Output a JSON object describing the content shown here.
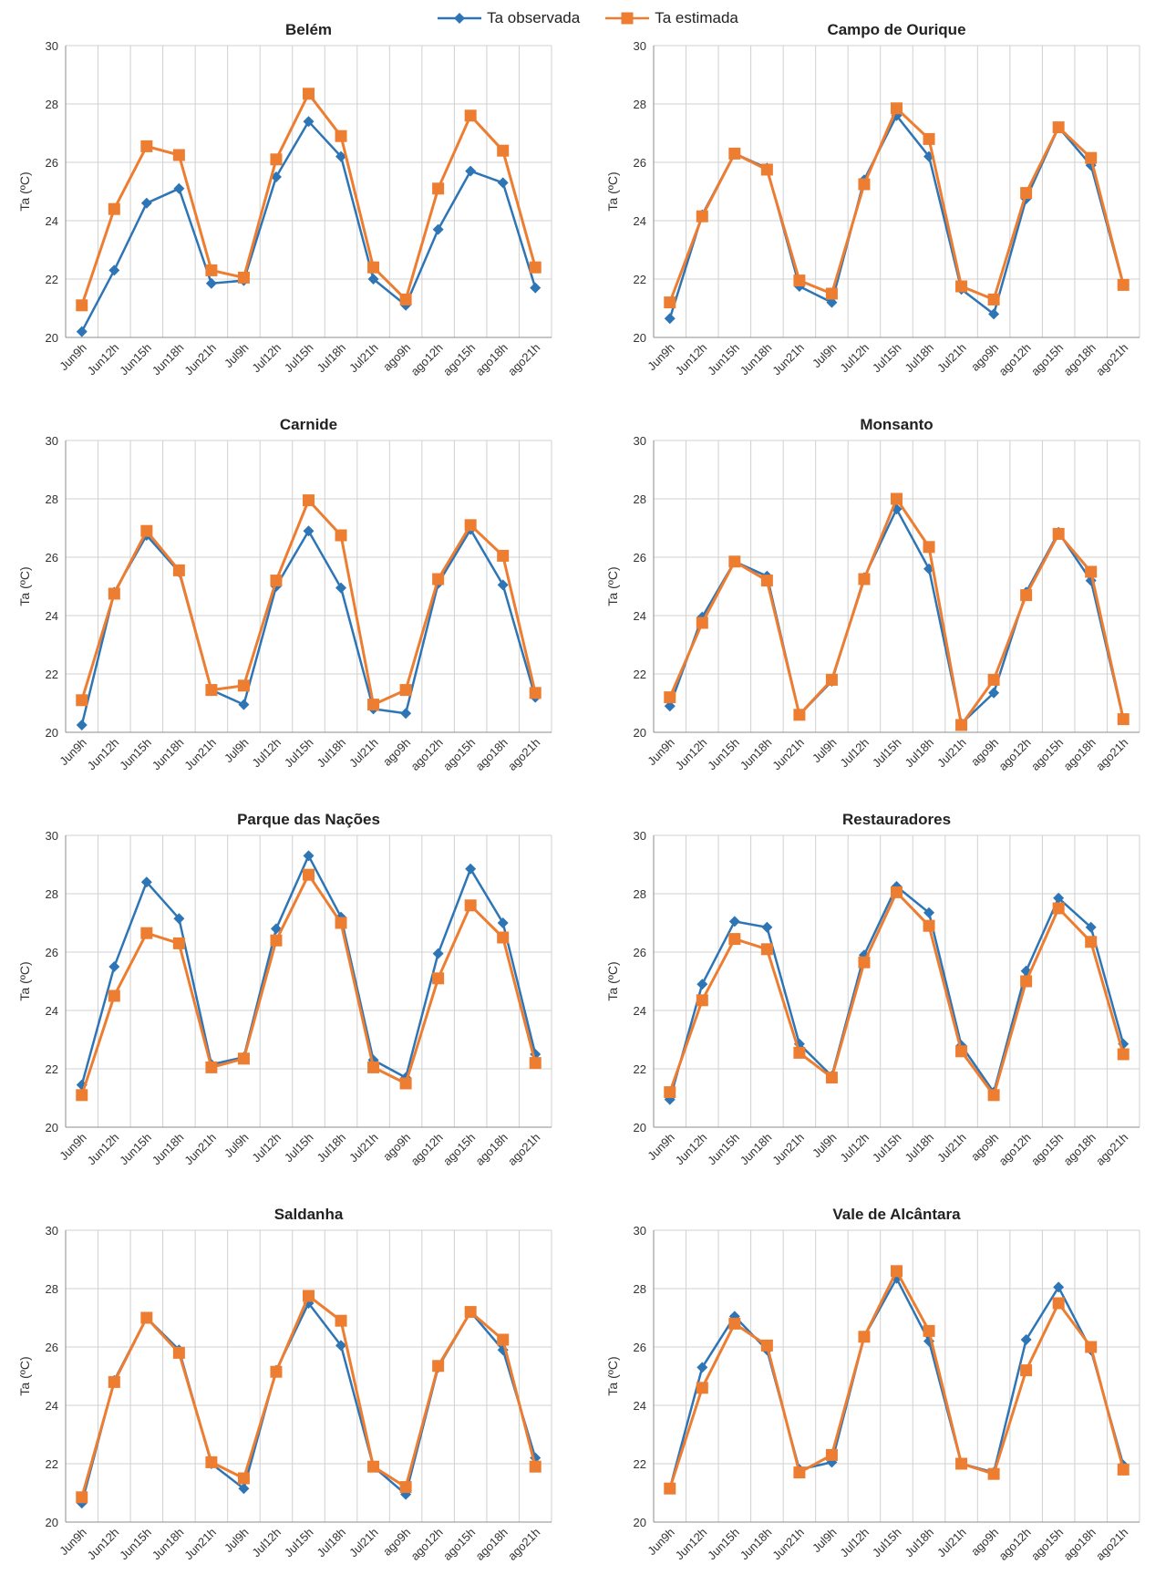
{
  "legend": {
    "position": "top-center",
    "items": [
      {
        "label": "Ta observada",
        "color": "#2E75B6",
        "marker": "diamond"
      },
      {
        "label": "Ta estimada",
        "color": "#ED7D31",
        "marker": "square"
      }
    ]
  },
  "chart_data": [
    {
      "type": "line",
      "title": "Belém",
      "ylabel": "Ta (ºC)",
      "ylim": [
        20,
        30
      ],
      "yticks": [
        20,
        22,
        24,
        26,
        28,
        30
      ],
      "grid": true,
      "categories": [
        "Jun9h",
        "Jun12h",
        "Jun15h",
        "Jun18h",
        "Jun21h",
        "Jul9h",
        "Jul12h",
        "Jul15h",
        "Jul18h",
        "Jul21h",
        "ago9h",
        "ago12h",
        "ago15h",
        "ago18h",
        "ago21h"
      ],
      "series": [
        {
          "name": "Ta observada",
          "values": [
            20.2,
            22.3,
            24.6,
            25.1,
            21.85,
            21.95,
            25.5,
            27.4,
            26.2,
            22.0,
            21.1,
            23.7,
            25.7,
            25.3,
            21.7
          ]
        },
        {
          "name": "Ta estimada",
          "values": [
            21.1,
            24.4,
            26.55,
            26.25,
            22.3,
            22.05,
            26.1,
            28.35,
            26.9,
            22.4,
            21.3,
            25.1,
            27.6,
            26.4,
            22.4
          ]
        }
      ]
    },
    {
      "type": "line",
      "title": "Campo de Ourique",
      "ylabel": "Ta (ºC)",
      "ylim": [
        20,
        30
      ],
      "yticks": [
        20,
        22,
        24,
        26,
        28,
        30
      ],
      "grid": true,
      "categories": [
        "Jun9h",
        "Jun12h",
        "Jun15h",
        "Jun18h",
        "Jun21h",
        "Jul9h",
        "Jul12h",
        "Jul15h",
        "Jul18h",
        "Jul21h",
        "ago9h",
        "ago12h",
        "ago15h",
        "ago18h",
        "ago21h"
      ],
      "series": [
        {
          "name": "Ta observada",
          "values": [
            20.65,
            24.2,
            26.3,
            25.8,
            21.75,
            21.2,
            25.4,
            27.6,
            26.2,
            21.65,
            20.8,
            24.75,
            27.2,
            25.9,
            21.8
          ]
        },
        {
          "name": "Ta estimada",
          "values": [
            21.2,
            24.15,
            26.3,
            25.75,
            21.95,
            21.5,
            25.25,
            27.85,
            26.8,
            21.75,
            21.3,
            24.95,
            27.2,
            26.15,
            21.8
          ]
        }
      ]
    },
    {
      "type": "line",
      "title": "Carnide",
      "ylabel": "Ta (ºC)",
      "ylim": [
        20,
        30
      ],
      "yticks": [
        20,
        22,
        24,
        26,
        28,
        30
      ],
      "grid": true,
      "categories": [
        "Jun9h",
        "Jun12h",
        "Jun15h",
        "Jun18h",
        "Jun21h",
        "Jul9h",
        "Jul12h",
        "Jul15h",
        "Jul18h",
        "Jul21h",
        "ago9h",
        "ago12h",
        "ago15h",
        "ago18h",
        "ago21h"
      ],
      "series": [
        {
          "name": "Ta observada",
          "values": [
            20.25,
            24.8,
            26.75,
            25.5,
            21.45,
            20.95,
            25.0,
            26.9,
            24.95,
            20.8,
            20.65,
            25.1,
            26.95,
            25.05,
            21.2
          ]
        },
        {
          "name": "Ta estimada",
          "values": [
            21.1,
            24.75,
            26.9,
            25.55,
            21.45,
            21.6,
            25.2,
            27.95,
            26.75,
            20.95,
            21.45,
            25.25,
            27.1,
            26.05,
            21.35
          ]
        }
      ]
    },
    {
      "type": "line",
      "title": "Monsanto",
      "ylabel": "Ta (ºC)",
      "ylim": [
        20,
        30
      ],
      "yticks": [
        20,
        22,
        24,
        26,
        28,
        30
      ],
      "grid": true,
      "categories": [
        "Jun9h",
        "Jun12h",
        "Jun15h",
        "Jun18h",
        "Jun21h",
        "Jul9h",
        "Jul12h",
        "Jul15h",
        "Jul18h",
        "Jul21h",
        "ago9h",
        "ago12h",
        "ago15h",
        "ago18h",
        "ago21h"
      ],
      "series": [
        {
          "name": "Ta observada",
          "values": [
            20.9,
            23.95,
            25.85,
            25.35,
            20.6,
            21.75,
            25.3,
            27.65,
            25.6,
            20.3,
            21.35,
            24.8,
            26.85,
            25.2,
            20.45
          ]
        },
        {
          "name": "Ta estimada",
          "values": [
            21.2,
            23.75,
            25.85,
            25.2,
            20.6,
            21.8,
            25.25,
            28.0,
            26.35,
            20.25,
            21.8,
            24.7,
            26.8,
            25.5,
            20.45
          ]
        }
      ]
    },
    {
      "type": "line",
      "title": "Parque das  Nações",
      "ylabel": "Ta (ºC)",
      "ylim": [
        20,
        30
      ],
      "yticks": [
        20,
        22,
        24,
        26,
        28,
        30
      ],
      "grid": true,
      "categories": [
        "Jun9h",
        "Jun12h",
        "Jun15h",
        "Jun18h",
        "Jun21h",
        "Jul9h",
        "Jul12h",
        "Jul15h",
        "Jul18h",
        "Jul21h",
        "ago9h",
        "ago12h",
        "ago15h",
        "ago18h",
        "ago21h"
      ],
      "series": [
        {
          "name": "Ta observada",
          "values": [
            21.45,
            25.5,
            28.4,
            27.15,
            22.15,
            22.4,
            26.8,
            29.3,
            27.2,
            22.3,
            21.7,
            25.95,
            28.85,
            27.0,
            22.5
          ]
        },
        {
          "name": "Ta estimada",
          "values": [
            21.1,
            24.5,
            26.65,
            26.3,
            22.05,
            22.35,
            26.4,
            28.65,
            27.0,
            22.05,
            21.5,
            25.1,
            27.6,
            26.5,
            22.2
          ]
        }
      ]
    },
    {
      "type": "line",
      "title": "Restauradores",
      "ylabel": "Ta (ºC)",
      "ylim": [
        20,
        30
      ],
      "yticks": [
        20,
        22,
        24,
        26,
        28,
        30
      ],
      "grid": true,
      "categories": [
        "Jun9h",
        "Jun12h",
        "Jun15h",
        "Jun18h",
        "Jun21h",
        "Jul9h",
        "Jul12h",
        "Jul15h",
        "Jul18h",
        "Jul21h",
        "ago9h",
        "ago12h",
        "ago15h",
        "ago18h",
        "ago21h"
      ],
      "series": [
        {
          "name": "Ta observada",
          "values": [
            20.95,
            24.9,
            27.05,
            26.85,
            22.85,
            21.75,
            25.9,
            28.25,
            27.35,
            22.8,
            21.2,
            25.35,
            27.85,
            26.85,
            22.85
          ]
        },
        {
          "name": "Ta estimada",
          "values": [
            21.2,
            24.35,
            26.45,
            26.1,
            22.55,
            21.7,
            25.65,
            28.05,
            26.9,
            22.6,
            21.1,
            25.0,
            27.5,
            26.35,
            22.5
          ]
        }
      ]
    },
    {
      "type": "line",
      "title": "Saldanha",
      "ylabel": "Ta (ºC)",
      "ylim": [
        20,
        30
      ],
      "yticks": [
        20,
        22,
        24,
        26,
        28,
        30
      ],
      "grid": true,
      "categories": [
        "Jun9h",
        "Jun12h",
        "Jun15h",
        "Jun18h",
        "Jun21h",
        "Jul9h",
        "Jul12h",
        "Jul15h",
        "Jul18h",
        "Jul21h",
        "ago9h",
        "ago12h",
        "ago15h",
        "ago18h",
        "ago21h"
      ],
      "series": [
        {
          "name": "Ta observada",
          "values": [
            20.65,
            24.85,
            27.0,
            25.9,
            22.0,
            21.15,
            25.2,
            27.5,
            26.05,
            21.9,
            20.95,
            25.3,
            27.2,
            25.9,
            22.2
          ]
        },
        {
          "name": "Ta estimada",
          "values": [
            20.85,
            24.8,
            27.0,
            25.8,
            22.05,
            21.5,
            25.15,
            27.75,
            26.9,
            21.9,
            21.2,
            25.35,
            27.2,
            26.25,
            21.9
          ]
        }
      ]
    },
    {
      "type": "line",
      "title": "Vale de Alcântara",
      "ylabel": "Ta (ºC)",
      "ylim": [
        20,
        30
      ],
      "yticks": [
        20,
        22,
        24,
        26,
        28,
        30
      ],
      "grid": true,
      "categories": [
        "Jun9h",
        "Jun12h",
        "Jun15h",
        "Jun18h",
        "Jun21h",
        "Jul9h",
        "Jul12h",
        "Jul15h",
        "Jul18h",
        "Jul21h",
        "ago9h",
        "ago12h",
        "ago15h",
        "ago18h",
        "ago21h"
      ],
      "series": [
        {
          "name": "Ta observada",
          "values": [
            21.15,
            25.3,
            27.05,
            25.9,
            21.8,
            22.05,
            26.35,
            28.35,
            26.2,
            22.0,
            21.7,
            26.25,
            28.05,
            25.9,
            21.95
          ]
        },
        {
          "name": "Ta estimada",
          "values": [
            21.15,
            24.6,
            26.8,
            26.05,
            21.7,
            22.3,
            26.35,
            28.6,
            26.55,
            22.0,
            21.65,
            25.2,
            27.5,
            26.0,
            21.8
          ]
        }
      ]
    }
  ]
}
